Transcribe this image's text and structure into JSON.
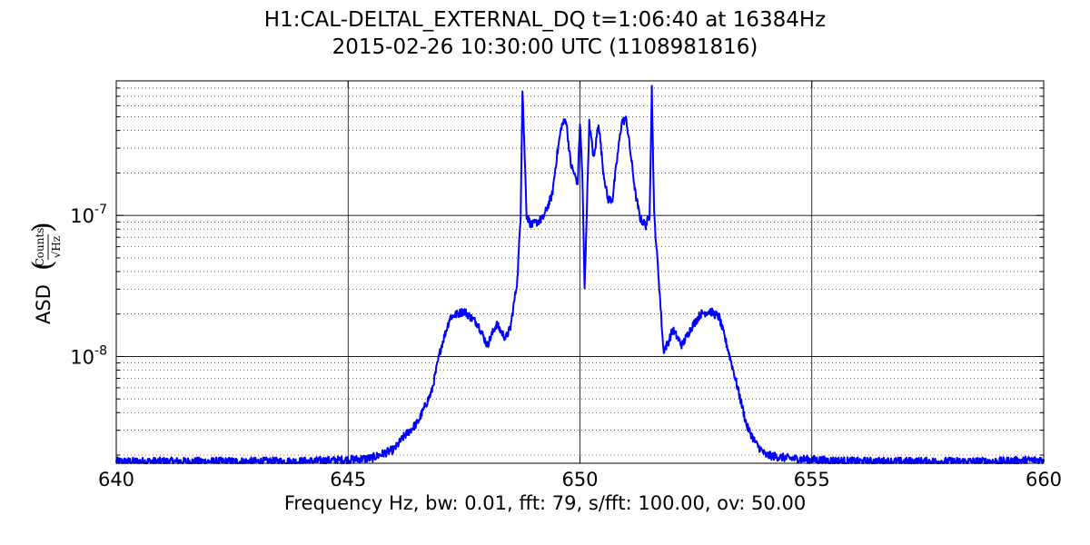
{
  "chart_data": {
    "type": "line",
    "title": "H1:CAL-DELTAL_EXTERNAL_DQ t=1:06:40 at 16384Hz",
    "subtitle": "2015-02-26 10:30:00 UTC (1108981816)",
    "xlabel": "Frequency Hz,  bw: 0.01, fft: 79, s/fft: 100.00, ov: 50.00",
    "ylabel": "ASD",
    "ylabel_unit": {
      "numerator": "Counts",
      "denominator": "√Hz"
    },
    "xlim": [
      640,
      660
    ],
    "ylim": [
      1.75e-09,
      9e-07
    ],
    "yscale": "log",
    "x_ticks": [
      "640",
      "645",
      "650",
      "655",
      "660"
    ],
    "y_ticks": [
      {
        "value": 1e-07,
        "base": "10",
        "exp": "-7"
      },
      {
        "value": 1e-08,
        "base": "10",
        "exp": "-8"
      }
    ],
    "grid": true,
    "color": "#0000ff",
    "series": [
      {
        "x": [
          640.0,
          641.0,
          642.0,
          643.0,
          644.0,
          645.0,
          645.5,
          646.0,
          646.2,
          646.5,
          646.8,
          647.0,
          647.2,
          647.5,
          647.8,
          648.0,
          648.2,
          648.3,
          648.4,
          648.5,
          648.65,
          648.72,
          648.76,
          648.85,
          648.95,
          649.2,
          649.4,
          649.5,
          649.6,
          649.7,
          649.8,
          649.95,
          650.0,
          650.05,
          650.1,
          650.2,
          650.3,
          650.4,
          650.5,
          650.6,
          650.7,
          650.8,
          650.9,
          651.0,
          651.1,
          651.2,
          651.3,
          651.42,
          651.5,
          651.55,
          651.6,
          651.7,
          651.8,
          651.9,
          652.0,
          652.2,
          652.4,
          652.6,
          652.8,
          653.0,
          653.2,
          653.4,
          653.6,
          653.8,
          654.0,
          654.5,
          655.0,
          656.0,
          657.0,
          658.0,
          659.0,
          660.0
        ],
        "y": [
          1.8e-09,
          1.8e-09,
          1.8e-09,
          1.8e-09,
          1.8e-09,
          1.85e-09,
          1.9e-09,
          2.2e-09,
          2.7e-09,
          3.4e-09,
          5.6e-09,
          1.15e-08,
          1.9e-08,
          2.1e-08,
          1.7e-08,
          1.2e-08,
          1.7e-08,
          1.5e-08,
          1.35e-08,
          1.6e-08,
          3.5e-08,
          1e-07,
          8e-07,
          1e-07,
          8.5e-08,
          9.5e-08,
          1.4e-07,
          2.6e-07,
          4.3e-07,
          4.8e-07,
          2.3e-07,
          1.7e-07,
          4.5e-07,
          2e-07,
          3e-08,
          4.5e-07,
          2.5e-07,
          4.6e-07,
          2.1e-07,
          1.3e-07,
          1.3e-07,
          2.5e-07,
          4.6e-07,
          4.8e-07,
          2.6e-07,
          1.4e-07,
          9.5e-08,
          8.5e-08,
          1e-07,
          8e-07,
          1e-07,
          3.5e-08,
          1.1e-08,
          1.25e-08,
          1.55e-08,
          1.2e-08,
          1.6e-08,
          2e-08,
          2.1e-08,
          1.9e-08,
          1.1e-08,
          6e-09,
          3.2e-09,
          2.4e-09,
          2e-09,
          1.9e-09,
          1.85e-09,
          1.8e-09,
          1.8e-09,
          1.8e-09,
          1.8e-09,
          1.85e-09
        ]
      }
    ]
  }
}
